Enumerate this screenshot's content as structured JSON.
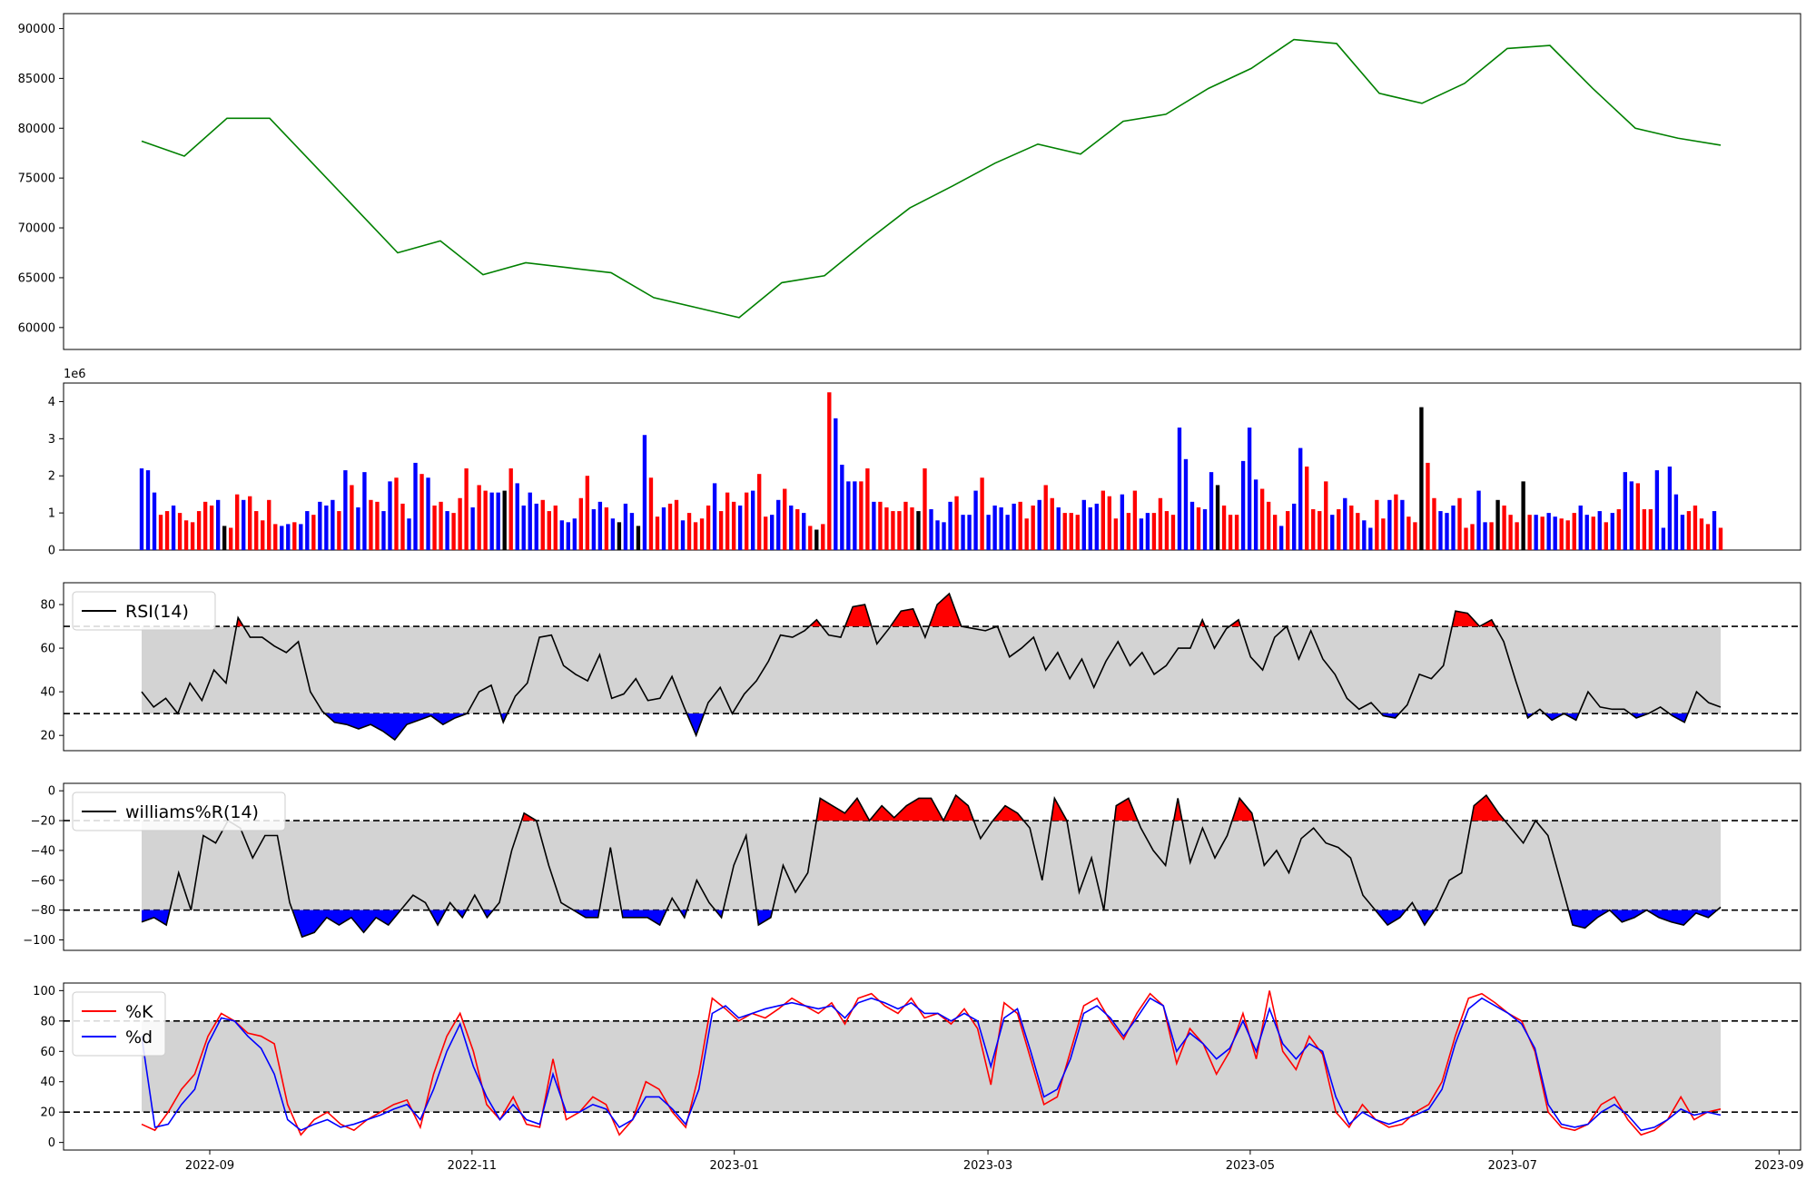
{
  "chart_data": [
    {
      "type": "line",
      "panel": "price",
      "color": "#008000",
      "ylim": [
        57800,
        91500
      ],
      "yticks": [
        60000,
        65000,
        70000,
        75000,
        80000,
        85000,
        90000
      ],
      "ytick_labels": [
        "60000",
        "65000",
        "70000",
        "75000",
        "80000",
        "85000",
        "90000"
      ],
      "x": [
        "2022-08-17",
        "2022-08-27",
        "2022-09-06",
        "2022-09-16",
        "2022-09-26",
        "2022-10-06",
        "2022-10-16",
        "2022-10-26",
        "2022-11-05",
        "2022-11-15",
        "2022-11-25",
        "2022-12-05",
        "2022-12-15",
        "2022-12-25",
        "2023-01-04",
        "2023-01-14",
        "2023-01-24",
        "2023-02-03",
        "2023-02-13",
        "2023-02-23",
        "2023-03-05",
        "2023-03-15",
        "2023-03-25",
        "2023-04-04",
        "2023-04-14",
        "2023-04-24",
        "2023-05-04",
        "2023-05-14",
        "2023-05-24",
        "2023-06-03",
        "2023-06-13",
        "2023-06-23",
        "2023-07-03",
        "2023-07-13",
        "2023-07-23",
        "2023-08-02",
        "2023-08-12",
        "2023-08-17"
      ],
      "values": [
        78700,
        77200,
        81000,
        81000,
        76500,
        72000,
        67500,
        68700,
        65300,
        66500,
        66000,
        65500,
        63000,
        62000,
        61000,
        64500,
        65200,
        68700,
        72000,
        74200,
        76500,
        78400,
        77400,
        80700,
        81400,
        84000,
        86000,
        88900,
        88500,
        83500,
        82500,
        84500,
        88000,
        88300,
        84000,
        80000,
        79000,
        78300
      ]
    },
    {
      "type": "bar",
      "panel": "volume",
      "scale_label": "1e6",
      "ylim": [
        0,
        4.5
      ],
      "yticks": [
        0,
        1,
        2,
        3,
        4
      ],
      "ytick_labels": [
        "0",
        "1",
        "2",
        "3",
        "4"
      ],
      "colors": {
        "up": "#ff0000",
        "down": "#0000ff",
        "flat": "#000000"
      },
      "values": [
        2.2,
        2.15,
        1.55,
        0.95,
        1.05,
        1.2,
        1.0,
        0.8,
        0.75,
        1.05,
        1.3,
        1.2,
        1.35,
        0.65,
        0.6,
        1.5,
        1.35,
        1.45,
        1.05,
        0.8,
        1.35,
        0.7,
        0.65,
        0.7,
        0.75,
        0.7,
        1.05,
        0.95,
        1.3,
        1.2,
        1.35,
        1.05,
        2.15,
        1.75,
        1.15,
        2.1,
        1.35,
        1.3,
        1.05,
        1.85,
        1.95,
        1.25,
        0.85,
        2.35,
        2.05,
        1.95,
        1.2,
        1.3,
        1.05,
        1.0,
        1.4,
        2.2,
        1.15,
        1.75,
        1.6,
        1.55,
        1.55,
        1.6,
        2.2,
        1.8,
        1.2,
        1.55,
        1.25,
        1.35,
        1.05,
        1.2,
        0.8,
        0.75,
        0.85,
        1.4,
        2.0,
        1.1,
        1.3,
        1.15,
        0.85,
        0.75,
        1.25,
        1.0,
        0.65,
        3.1,
        1.95,
        0.9,
        1.15,
        1.25,
        1.35,
        0.8,
        1.0,
        0.75,
        0.85,
        1.2,
        1.8,
        1.05,
        1.55,
        1.3,
        1.2,
        1.55,
        1.6,
        2.05,
        0.9,
        0.95,
        1.35,
        1.65,
        1.2,
        1.1,
        1.0,
        0.65,
        0.55,
        0.7,
        4.25,
        3.55,
        2.3,
        1.85,
        1.85,
        1.85,
        2.2,
        1.3,
        1.3,
        1.15,
        1.05,
        1.05,
        1.3,
        1.15,
        1.05,
        2.2,
        1.1,
        0.8,
        0.75,
        1.3,
        1.45,
        0.95,
        0.95,
        1.6,
        1.95,
        0.95,
        1.2,
        1.15,
        0.95,
        1.25,
        1.3,
        0.85,
        1.2,
        1.35,
        1.75,
        1.4,
        1.15,
        1.0,
        1.0,
        0.95,
        1.35,
        1.15,
        1.25,
        1.6,
        1.45,
        0.85,
        1.5,
        1.0,
        1.6,
        0.85,
        1.0,
        1.0,
        1.4,
        1.05,
        0.95,
        3.3,
        2.45,
        1.3,
        1.15,
        1.1,
        2.1,
        1.75,
        1.2,
        0.95,
        0.95,
        2.4,
        3.3,
        1.9,
        1.65,
        1.3,
        0.95,
        0.65,
        1.05,
        1.25,
        2.75,
        2.25,
        1.1,
        1.05,
        1.85,
        0.95,
        1.1,
        1.4,
        1.2,
        1.0,
        0.8,
        0.6,
        1.35,
        0.85,
        1.35,
        1.5,
        1.35,
        0.9,
        0.75,
        3.85,
        2.35,
        1.4,
        1.05,
        1.0,
        1.2,
        1.4,
        0.6,
        0.7,
        1.6,
        0.75,
        0.75,
        1.35,
        1.2,
        0.95,
        0.75,
        1.85,
        0.95,
        0.95,
        0.9,
        1.0,
        0.9,
        0.85,
        0.8,
        1.0,
        1.2,
        0.95,
        0.9,
        1.05,
        0.75,
        1.0,
        1.1,
        2.1,
        1.85,
        1.8,
        1.1,
        1.1,
        2.15,
        0.6,
        2.25,
        1.5,
        0.95,
        1.05,
        1.2,
        0.85,
        0.7,
        1.05,
        0.6
      ],
      "directions": [
        "D",
        "D",
        "D",
        "U",
        "U",
        "D",
        "U",
        "U",
        "U",
        "U",
        "U",
        "U",
        "D",
        "F",
        "U",
        "U",
        "D",
        "U",
        "U",
        "U",
        "U",
        "U",
        "D",
        "D",
        "U",
        "D",
        "D",
        "U",
        "D",
        "D",
        "D",
        "U",
        "D",
        "U",
        "D",
        "D",
        "U",
        "U",
        "D",
        "D",
        "U",
        "U",
        "D",
        "D",
        "U",
        "D",
        "U",
        "U",
        "D",
        "U",
        "U",
        "U",
        "D",
        "U",
        "U",
        "D",
        "D",
        "F",
        "U",
        "D",
        "D",
        "D",
        "D",
        "U",
        "U",
        "U",
        "D",
        "D",
        "D",
        "U",
        "U",
        "D",
        "D",
        "U",
        "D",
        "F",
        "D",
        "D",
        "F",
        "D",
        "U",
        "U",
        "D",
        "U",
        "U",
        "D",
        "U",
        "U",
        "U",
        "U",
        "D",
        "U",
        "U",
        "U",
        "D",
        "U",
        "D",
        "U",
        "U",
        "D",
        "D",
        "U",
        "D",
        "U",
        "D",
        "U",
        "F",
        "U",
        "U",
        "D",
        "D",
        "D",
        "D",
        "U",
        "U",
        "D",
        "U",
        "U",
        "U",
        "U",
        "U",
        "U",
        "F",
        "U",
        "D",
        "D",
        "D",
        "D",
        "U",
        "D",
        "D",
        "D",
        "U",
        "D",
        "D",
        "D",
        "D",
        "D",
        "U",
        "U",
        "U",
        "D",
        "U",
        "U",
        "D",
        "U",
        "U",
        "U",
        "D",
        "D",
        "D",
        "U",
        "U",
        "U",
        "D",
        "U",
        "U",
        "D",
        "D",
        "U",
        "U",
        "U",
        "U",
        "D",
        "D",
        "D",
        "U",
        "D",
        "D",
        "F",
        "U",
        "U",
        "U",
        "D",
        "D",
        "D",
        "U",
        "U",
        "U",
        "D",
        "U",
        "D",
        "D",
        "U",
        "U",
        "U",
        "U",
        "D",
        "U",
        "D",
        "U",
        "U",
        "D",
        "D",
        "U",
        "U",
        "D",
        "U",
        "D",
        "U",
        "U",
        "F",
        "U",
        "U",
        "D",
        "D",
        "D",
        "U",
        "U",
        "U",
        "D",
        "D",
        "U",
        "F",
        "U",
        "U",
        "U",
        "F",
        "U",
        "D",
        "U",
        "D",
        "D",
        "U",
        "U",
        "U",
        "D",
        "D",
        "U",
        "D",
        "U",
        "D",
        "U",
        "D",
        "D",
        "U",
        "U",
        "U",
        "D",
        "D",
        "D",
        "D",
        "D",
        "U",
        "U",
        "U",
        "U",
        "D",
        "U",
        "U"
      ]
    },
    {
      "type": "line",
      "panel": "rsi",
      "name": "RSI(14)",
      "color": "#000000",
      "ylim": [
        13,
        90
      ],
      "yticks": [
        20,
        40,
        60,
        80
      ],
      "ytick_labels": [
        "20",
        "40",
        "60",
        "80"
      ],
      "upper": 70,
      "lower": 30,
      "fill_upper_color": "#ff0000",
      "fill_lower_color": "#0000ff",
      "band_color": "#d3d3d3",
      "values": [
        40,
        33,
        37,
        30,
        44,
        36,
        50,
        44,
        74,
        65,
        65,
        61,
        58,
        63,
        40,
        31,
        26,
        25,
        23,
        25,
        22,
        18,
        25,
        27,
        29,
        25,
        28,
        30,
        40,
        43,
        26,
        38,
        44,
        65,
        66,
        52,
        48,
        45,
        57,
        37,
        39,
        46,
        36,
        37,
        47,
        33,
        20,
        35,
        42,
        30,
        39,
        45,
        54,
        66,
        65,
        68,
        73,
        66,
        65,
        79,
        80,
        62,
        69,
        77,
        78,
        65,
        80,
        85,
        70,
        69,
        68,
        70,
        56,
        60,
        65,
        50,
        58,
        46,
        55,
        42,
        54,
        63,
        52,
        58,
        48,
        52,
        60,
        60,
        73,
        60,
        69,
        73,
        56,
        50,
        65,
        70,
        55,
        68,
        55,
        48,
        37,
        32,
        35,
        29,
        28,
        34,
        48,
        46,
        52,
        77,
        76,
        70,
        73,
        63,
        45,
        28,
        32,
        27,
        30,
        27,
        40,
        33,
        32,
        32,
        28,
        30,
        33,
        29,
        26,
        40,
        35,
        33
      ]
    },
    {
      "type": "line",
      "panel": "williams",
      "name": "williams%R(14)",
      "color": "#000000",
      "ylim": [
        -107,
        5
      ],
      "yticks": [
        -100,
        -80,
        -60,
        -40,
        -20,
        0
      ],
      "ytick_labels": [
        "−100",
        "−80",
        "−60",
        "−40",
        "−20",
        "0"
      ],
      "upper": -20,
      "lower": -80,
      "fill_upper_color": "#ff0000",
      "fill_lower_color": "#0000ff",
      "band_color": "#d3d3d3",
      "values": [
        -88,
        -85,
        -90,
        -55,
        -80,
        -30,
        -35,
        -20,
        -25,
        -45,
        -30,
        -30,
        -75,
        -98,
        -95,
        -85,
        -90,
        -85,
        -95,
        -85,
        -90,
        -80,
        -70,
        -75,
        -90,
        -75,
        -85,
        -70,
        -85,
        -75,
        -40,
        -15,
        -20,
        -50,
        -75,
        -80,
        -85,
        -85,
        -38,
        -85,
        -85,
        -85,
        -90,
        -72,
        -85,
        -60,
        -75,
        -85,
        -50,
        -30,
        -90,
        -85,
        -50,
        -68,
        -55,
        -5,
        -10,
        -15,
        -5,
        -20,
        -10,
        -18,
        -10,
        -5,
        -5,
        -20,
        -3,
        -10,
        -32,
        -20,
        -10,
        -15,
        -25,
        -60,
        -5,
        -20,
        -68,
        -45,
        -80,
        -10,
        -5,
        -25,
        -40,
        -50,
        -5,
        -48,
        -25,
        -45,
        -30,
        -5,
        -15,
        -50,
        -40,
        -55,
        -32,
        -25,
        -35,
        -38,
        -45,
        -70,
        -80,
        -90,
        -85,
        -75,
        -90,
        -78,
        -60,
        -55,
        -10,
        -3,
        -15,
        -25,
        -35,
        -20,
        -30,
        -60,
        -90,
        -92,
        -85,
        -80,
        -88,
        -85,
        -80,
        -85,
        -88,
        -90,
        -82,
        -85,
        -78
      ]
    },
    {
      "type": "line",
      "panel": "stochastic",
      "ylim": [
        -5,
        105
      ],
      "yticks": [
        0,
        20,
        40,
        60,
        80,
        100
      ],
      "ytick_labels": [
        "0",
        "20",
        "40",
        "60",
        "80",
        "100"
      ],
      "upper": 80,
      "lower": 20,
      "band_color": "#d3d3d3",
      "x_ticks": [
        "2022-09",
        "2022-11",
        "2023-01",
        "2023-03",
        "2023-05",
        "2023-07",
        "2023-09"
      ],
      "xlim": [
        "2022-07-29",
        "2023-09-06"
      ],
      "series": [
        {
          "name": "%K",
          "color": "#ff0000",
          "values": [
            12,
            8,
            20,
            35,
            45,
            70,
            85,
            80,
            72,
            70,
            65,
            25,
            5,
            15,
            20,
            12,
            8,
            15,
            20,
            25,
            28,
            10,
            45,
            70,
            85,
            60,
            25,
            15,
            30,
            12,
            10,
            55,
            15,
            20,
            30,
            25,
            5,
            15,
            40,
            35,
            20,
            10,
            45,
            95,
            88,
            80,
            85,
            82,
            88,
            95,
            90,
            85,
            92,
            78,
            95,
            98,
            90,
            85,
            95,
            82,
            85,
            78,
            88,
            75,
            38,
            92,
            85,
            55,
            25,
            30,
            60,
            90,
            95,
            80,
            68,
            85,
            98,
            90,
            52,
            75,
            65,
            45,
            60,
            85,
            55,
            100,
            60,
            48,
            70,
            58,
            20,
            10,
            25,
            15,
            10,
            12,
            20,
            25,
            40,
            70,
            95,
            98,
            92,
            85,
            80,
            60,
            20,
            10,
            8,
            12,
            25,
            30,
            15,
            5,
            8,
            15,
            30,
            15,
            20,
            22
          ]
        },
        {
          "name": "%d",
          "color": "#0000ff",
          "values": [
            70,
            10,
            12,
            25,
            35,
            65,
            82,
            80,
            70,
            62,
            45,
            15,
            8,
            12,
            15,
            10,
            12,
            15,
            18,
            22,
            25,
            15,
            35,
            60,
            78,
            50,
            30,
            15,
            25,
            15,
            12,
            45,
            20,
            20,
            25,
            22,
            10,
            15,
            30,
            30,
            22,
            12,
            35,
            85,
            90,
            82,
            85,
            88,
            90,
            92,
            90,
            88,
            90,
            82,
            92,
            95,
            92,
            88,
            92,
            85,
            85,
            80,
            85,
            80,
            50,
            82,
            88,
            60,
            30,
            35,
            55,
            85,
            90,
            82,
            70,
            82,
            95,
            90,
            60,
            72,
            65,
            55,
            62,
            80,
            60,
            88,
            65,
            55,
            65,
            60,
            30,
            12,
            20,
            15,
            12,
            15,
            18,
            22,
            35,
            65,
            88,
            95,
            90,
            85,
            78,
            62,
            25,
            12,
            10,
            12,
            20,
            25,
            18,
            8,
            10,
            15,
            22,
            18,
            20,
            18
          ]
        }
      ]
    }
  ]
}
